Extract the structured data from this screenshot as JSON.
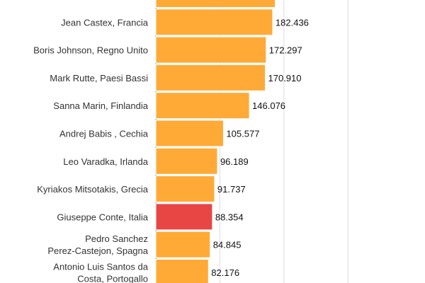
{
  "chart_data": {
    "type": "bar",
    "orientation": "horizontal",
    "grid": true,
    "xlim": [
      0,
      300000
    ],
    "categories": [
      "",
      "Jean Castex, Francia",
      "Boris Johnson, Regno Unito",
      "Mark Rutte, Paesi Bassi",
      "Sanna Marin, Finlandia",
      "Andrej Babis , Cechia",
      "Leo Varadka, Irlanda",
      "Kyriakos Mitsotakis, Grecia",
      "Giuseppe Conte, Italia",
      "Pedro Sanchez Perez-Castejon, Spagna",
      "Antonio Luis Santos da Costa, Portogallo"
    ],
    "values": [
      186500,
      182436,
      172297,
      170910,
      146076,
      105577,
      96189,
      91737,
      88354,
      84845,
      82176
    ],
    "value_labels": [
      "",
      "182.436",
      "172.297",
      "170.910",
      "146.076",
      "105.577",
      "96.189",
      "91.737",
      "88.354",
      "84.845",
      "82.176"
    ],
    "highlight_index": 8,
    "colors": {
      "bar": "#FFAA36",
      "highlight": "#E84545",
      "bar_border": "#ffffff",
      "grid": "#dddddd",
      "axis": "#666666"
    }
  }
}
